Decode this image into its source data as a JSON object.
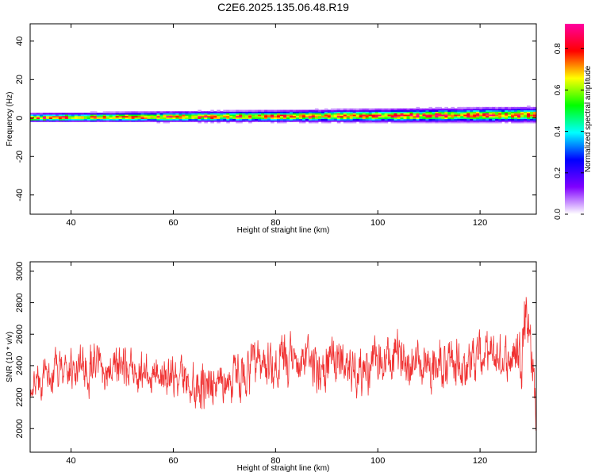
{
  "title": "C2E6.2025.135.06.48.R19",
  "colors": {
    "snr_line": "#f03030",
    "axis": "#000000",
    "background": "#ffffff"
  },
  "chart_data": [
    {
      "type": "heatmap",
      "xlabel": "Height of straight line (km)",
      "ylabel": "Frequency (Hz)",
      "xlim": [
        32,
        131
      ],
      "ylim": [
        -50,
        49
      ],
      "xticks": [
        40,
        60,
        80,
        100,
        120
      ],
      "yticks": [
        -40,
        -20,
        0,
        20,
        40
      ],
      "x_tick_labels": [
        "40",
        "60",
        "80",
        "100",
        "120"
      ],
      "y_tick_labels": [
        "-40",
        "-20",
        "0",
        "20",
        "40"
      ],
      "colorbar": {
        "label": "Normalized spectral amplitude",
        "range": [
          0,
          0.92
        ],
        "ticks": [
          0.0,
          0.2,
          0.4,
          0.6,
          0.8
        ],
        "tick_labels": [
          "0.0",
          "0.2",
          "0.4",
          "0.6",
          "0.8"
        ],
        "colormap": [
          "#ffffff",
          "#8000ff",
          "#0000ff",
          "#00ffff",
          "#00ff00",
          "#ffff00",
          "#ff0000",
          "#ff00a0"
        ]
      },
      "band": {
        "description_values": "spectral peak centered near 0 Hz, slightly rising to ~1 Hz at high heights",
        "center_hz_start": 0.0,
        "center_hz_end": 1.5,
        "half_width_hz": 4,
        "peak_amplitude": 0.9
      }
    },
    {
      "type": "line",
      "xlabel": "Height of straight line (km)",
      "ylabel": "SNR (10 * v/v)",
      "xlim": [
        32,
        131
      ],
      "ylim": [
        1850,
        3060
      ],
      "xticks": [
        40,
        60,
        80,
        100,
        120
      ],
      "yticks": [
        2000,
        2200,
        2400,
        2600,
        2800,
        3000
      ],
      "x_tick_labels": [
        "40",
        "60",
        "80",
        "100",
        "120"
      ],
      "y_tick_labels": [
        "2000",
        "2200",
        "2400",
        "2600",
        "2800",
        "3000"
      ],
      "series": [
        {
          "x": [
            32,
            35,
            40,
            45,
            50,
            55,
            60,
            65,
            70,
            75,
            80,
            85,
            90,
            92,
            95,
            100,
            105,
            110,
            115,
            120,
            125,
            128,
            129,
            130,
            131
          ],
          "values": [
            2270,
            2330,
            2370,
            2380,
            2380,
            2370,
            2330,
            2290,
            2300,
            2370,
            2400,
            2420,
            2400,
            2460,
            2380,
            2400,
            2450,
            2430,
            2400,
            2460,
            2440,
            2500,
            2800,
            2500,
            2100
          ],
          "spread": [
            90,
            110,
            130,
            140,
            130,
            130,
            130,
            150,
            140,
            140,
            150,
            150,
            160,
            160,
            140,
            150,
            160,
            160,
            160,
            150,
            140,
            180,
            200,
            180,
            150
          ]
        }
      ]
    }
  ]
}
